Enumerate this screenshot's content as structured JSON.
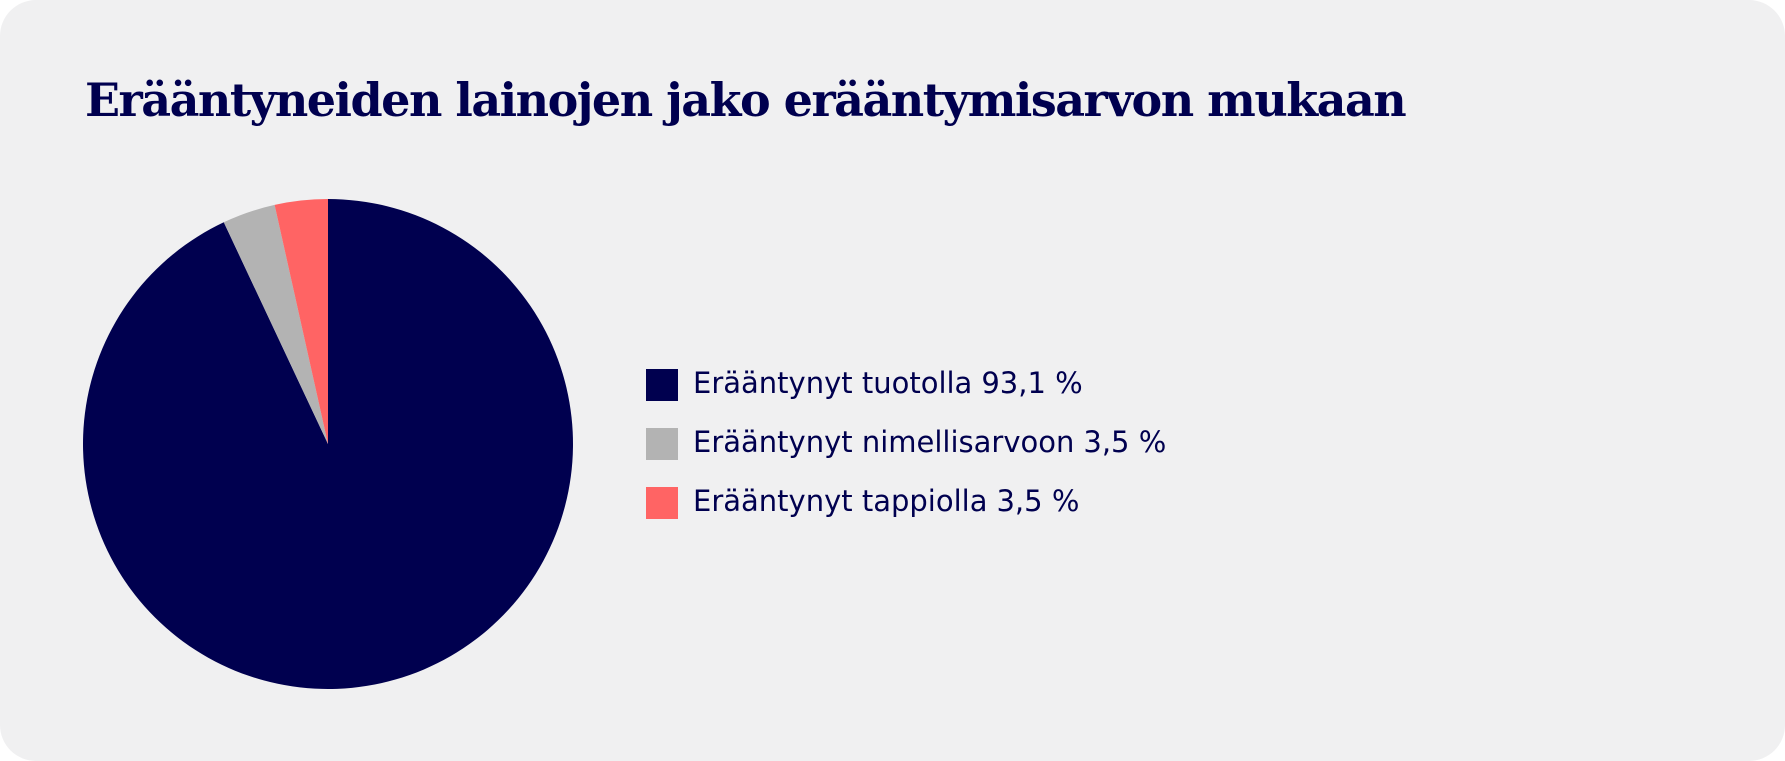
{
  "chart_data": {
    "type": "pie",
    "title": "Erääntyneiden lainojen jako erääntymisarvon mukaan",
    "categories": [
      "Erääntynyt tuotolla",
      "Erääntynyt nimellisarvoon",
      "Erääntynyt tappiolla"
    ],
    "values": [
      93.1,
      3.5,
      3.5
    ],
    "value_labels": [
      "93,1 %",
      "3,5 %",
      "3,5 %"
    ],
    "colors": [
      "#00004f",
      "#b3b3b3",
      "#ff6464"
    ],
    "legend": "right"
  }
}
